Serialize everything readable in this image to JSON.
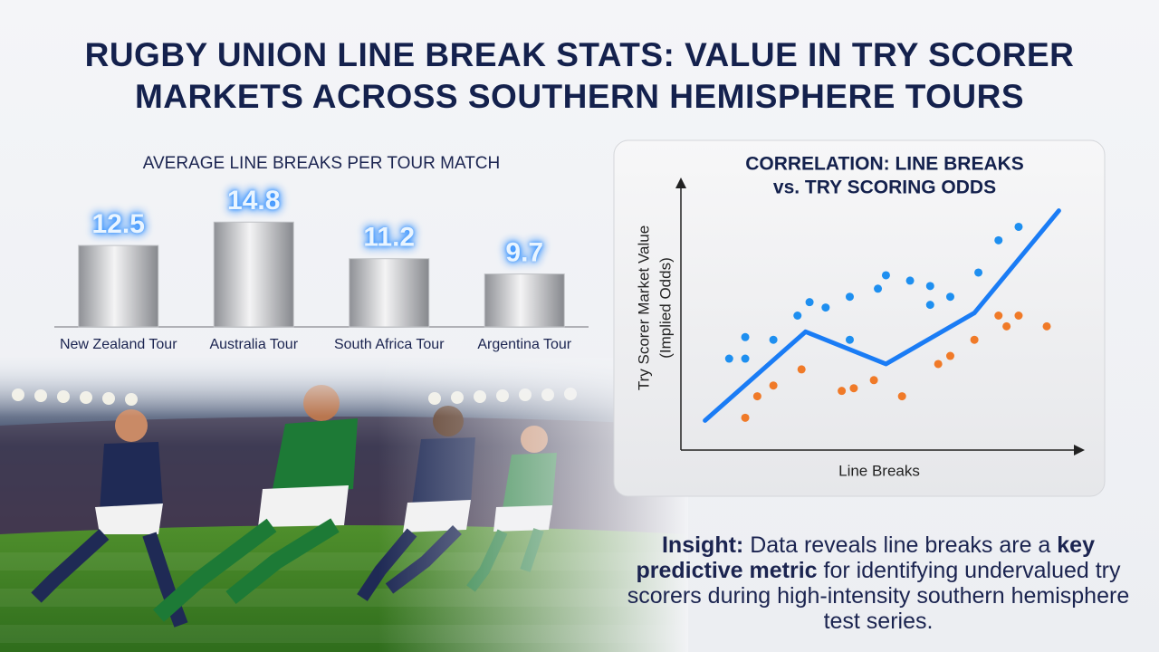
{
  "title": "RUGBY UNION LINE BREAK STATS: VALUE IN TRY SCORER MARKETS ACROSS SOUTHERN HEMISPHERE TOURS",
  "chart_data": [
    {
      "type": "bar",
      "title": "AVERAGE LINE BREAKS PER TOUR MATCH",
      "categories": [
        "New Zealand Tour",
        "Australia Tour",
        "South Africa Tour",
        "Argentina Tour"
      ],
      "values": [
        12.5,
        14.8,
        11.2,
        9.7
      ],
      "ylim": [
        4.5,
        15
      ],
      "color": "#bfc1c5"
    },
    {
      "type": "scatter",
      "title": [
        "CORRELATION: LINE BREAKS",
        "vs. TRY SCORING ODDS"
      ],
      "x_label": "Line Breaks",
      "y_label": [
        "Try Scorer Market Value",
        "(Implied Odds)"
      ],
      "xlim": [
        0,
        100
      ],
      "ylim": [
        0,
        100
      ],
      "series": [
        {
          "color": "#1e8ff0",
          "x": [
            12,
            16,
            16,
            23,
            29,
            32,
            36,
            42,
            42,
            49,
            51,
            57,
            62,
            62,
            67,
            74,
            79,
            84
          ],
          "values": [
            34,
            34,
            42,
            41,
            50,
            55,
            53,
            57,
            41,
            60,
            65,
            63,
            61,
            54,
            57,
            66,
            78,
            83
          ]
        },
        {
          "color": "#f07a28",
          "x": [
            16,
            19,
            23,
            30,
            40,
            43,
            48,
            55,
            64,
            67,
            73,
            79,
            81,
            84,
            91
          ],
          "values": [
            12,
            20,
            24,
            30,
            22,
            23,
            26,
            20,
            32,
            35,
            41,
            50,
            46,
            50,
            46
          ]
        }
      ],
      "trend": {
        "color": "#1a7cf5",
        "x": [
          6,
          31,
          51,
          73,
          94
        ],
        "values": [
          11,
          44,
          32,
          51,
          89
        ]
      }
    }
  ],
  "insight": [
    "Insight:",
    "Data reveals line breaks are a",
    "key predictive metric",
    "for identifying undervalued try scorers during high-intensity southern hemisphere test series."
  ]
}
